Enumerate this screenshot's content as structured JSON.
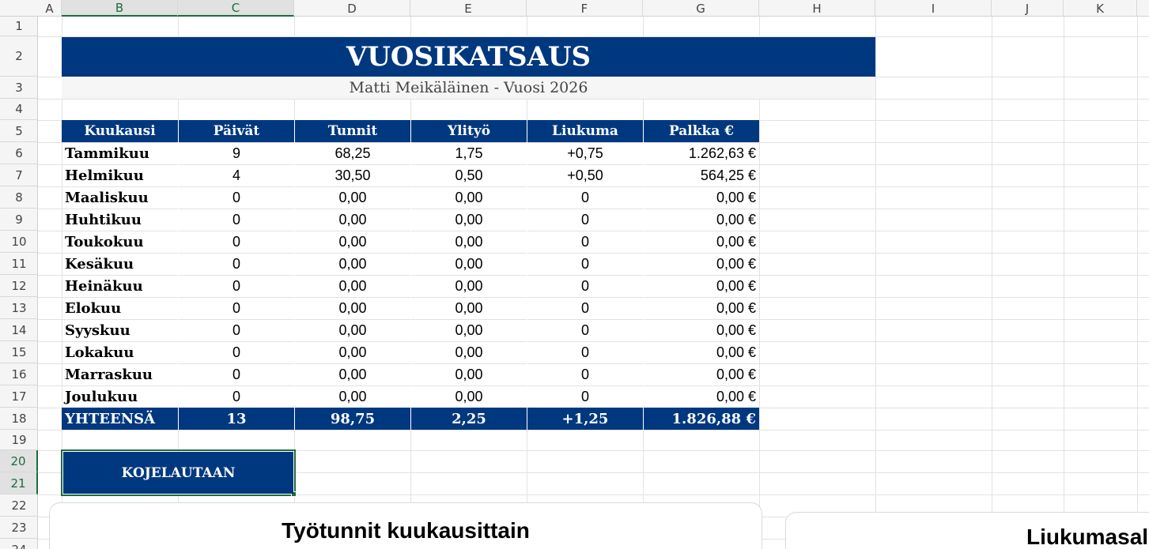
{
  "column_headers": [
    "A",
    "B",
    "C",
    "D",
    "E",
    "F",
    "G",
    "H",
    "I",
    "J",
    "K"
  ],
  "row_numbers": [
    1,
    2,
    3,
    4,
    5,
    6,
    7,
    8,
    9,
    10,
    11,
    12,
    13,
    14,
    15,
    16,
    17,
    18,
    19,
    20,
    21,
    22,
    23,
    24
  ],
  "report": {
    "title": "VUOSIKATSAUS",
    "subtitle": "Matti Meikäläinen - Vuosi 2026"
  },
  "table": {
    "header": [
      "Kuukausi",
      "Päivät",
      "Tunnit",
      "Ylityö",
      "Liukuma",
      "Palkka €"
    ],
    "rows": [
      [
        "Tammikuu",
        "9",
        "68,25",
        "1,75",
        "+0,75",
        "1.262,63 €"
      ],
      [
        "Helmikuu",
        "4",
        "30,50",
        "0,50",
        "+0,50",
        "564,25 €"
      ],
      [
        "Maaliskuu",
        "0",
        "0,00",
        "0,00",
        "0",
        "0,00 €"
      ],
      [
        "Huhtikuu",
        "0",
        "0,00",
        "0,00",
        "0",
        "0,00 €"
      ],
      [
        "Toukokuu",
        "0",
        "0,00",
        "0,00",
        "0",
        "0,00 €"
      ],
      [
        "Kesäkuu",
        "0",
        "0,00",
        "0,00",
        "0",
        "0,00 €"
      ],
      [
        "Heinäkuu",
        "0",
        "0,00",
        "0,00",
        "0",
        "0,00 €"
      ],
      [
        "Elokuu",
        "0",
        "0,00",
        "0,00",
        "0",
        "0,00 €"
      ],
      [
        "Syyskuu",
        "0",
        "0,00",
        "0,00",
        "0",
        "0,00 €"
      ],
      [
        "Lokakuu",
        "0",
        "0,00",
        "0,00",
        "0",
        "0,00 €"
      ],
      [
        "Marraskuu",
        "0",
        "0,00",
        "0,00",
        "0",
        "0,00 €"
      ],
      [
        "Joulukuu",
        "0",
        "0,00",
        "0,00",
        "0",
        "0,00 €"
      ]
    ],
    "total": [
      "YHTEENSÄ",
      "13",
      "98,75",
      "2,25",
      "+1,25",
      "1.826,88 €"
    ]
  },
  "button": {
    "label": "KOJELAUTAAN"
  },
  "charts": [
    {
      "title": "Työtunnit kuukausittain"
    },
    {
      "title": "Liukumasal"
    }
  ]
}
